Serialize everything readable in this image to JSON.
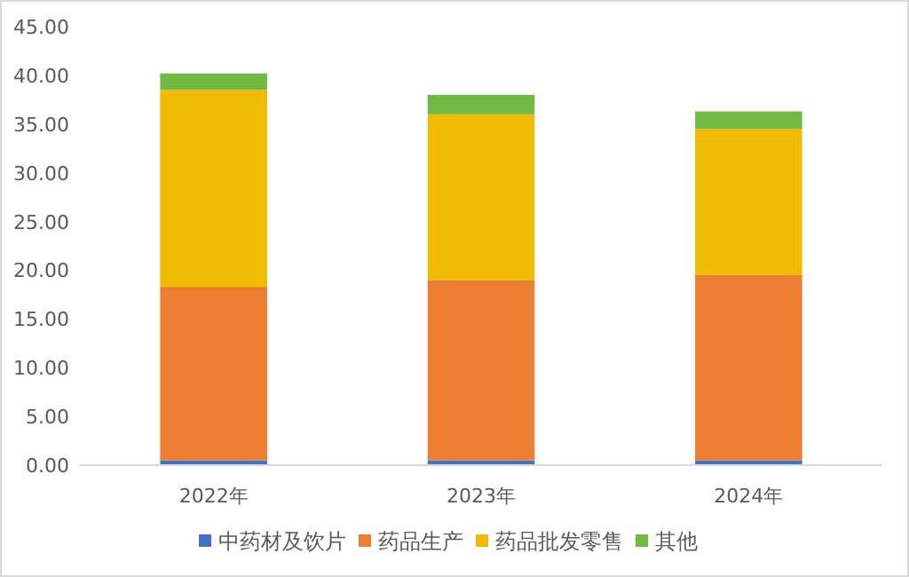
{
  "chart_data": {
    "type": "bar",
    "stacked": true,
    "categories": [
      "2022年",
      "2023年",
      "2024年"
    ],
    "series": [
      {
        "name": "中药材及饮片",
        "color": "#4472c4",
        "values": [
          0.5,
          0.5,
          0.5
        ]
      },
      {
        "name": "药品生产",
        "color": "#ed7d31",
        "values": [
          17.8,
          18.5,
          19.0
        ]
      },
      {
        "name": "药品批发零售",
        "color": "#f2bb03",
        "values": [
          20.2,
          17.0,
          15.0
        ]
      },
      {
        "name": "其他",
        "color": "#70b943",
        "values": [
          1.7,
          2.0,
          1.8
        ]
      }
    ],
    "ylim": [
      0,
      45
    ],
    "yticks": [
      {
        "value": 0,
        "label": "0.00"
      },
      {
        "value": 5,
        "label": "5.00"
      },
      {
        "value": 10,
        "label": "10.00"
      },
      {
        "value": 15,
        "label": "15.00"
      },
      {
        "value": 20,
        "label": "20.00"
      },
      {
        "value": 25,
        "label": "25.00"
      },
      {
        "value": 30,
        "label": "30.00"
      },
      {
        "value": 35,
        "label": "35.00"
      },
      {
        "value": 40,
        "label": "40.00"
      },
      {
        "value": 45,
        "label": "45.00"
      }
    ],
    "grid": false,
    "legend": "bottom"
  }
}
